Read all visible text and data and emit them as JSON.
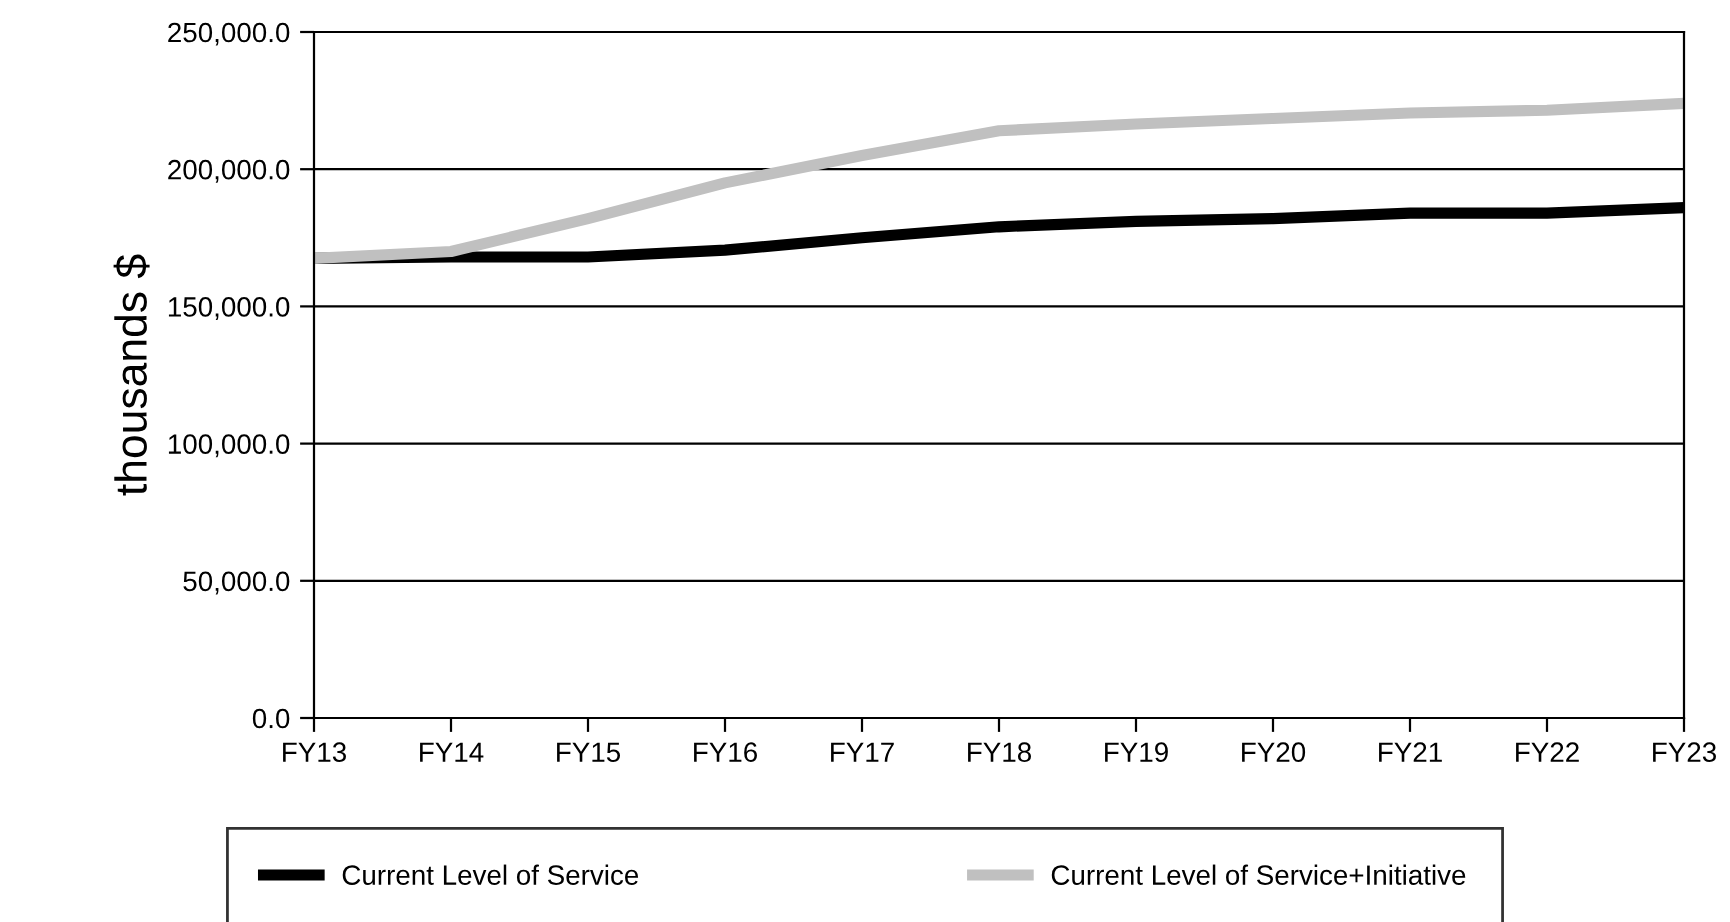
{
  "chart_data": {
    "type": "line",
    "ylabel": "thousands $",
    "categories": [
      "FY13",
      "FY14",
      "FY15",
      "FY16",
      "FY17",
      "FY18",
      "FY19",
      "FY20",
      "FY21",
      "FY22",
      "FY23"
    ],
    "series": [
      {
        "name": "Current Level of Service",
        "color": "#000000",
        "values": [
          167500,
          168000,
          168000,
          170500,
          175000,
          179000,
          181000,
          182000,
          184000,
          184000,
          186000
        ]
      },
      {
        "name": "Current Level of Service+Initiative",
        "color": "#c0c0c0",
        "values": [
          167500,
          170000,
          182000,
          195000,
          205000,
          214000,
          216500,
          218500,
          220500,
          221500,
          224000
        ]
      }
    ],
    "ylim": [
      0,
      250000
    ],
    "yticks": [
      {
        "value": 0,
        "label": "0.0"
      },
      {
        "value": 50000,
        "label": "50,000.0"
      },
      {
        "value": 100000,
        "label": "100,000.0"
      },
      {
        "value": 150000,
        "label": "150,000.0"
      },
      {
        "value": 200000,
        "label": "200,000.0"
      },
      {
        "value": 250000,
        "label": "250,000.0"
      }
    ],
    "grid": "y",
    "legend": "bottom",
    "marker": "none",
    "line_style": "solid"
  }
}
